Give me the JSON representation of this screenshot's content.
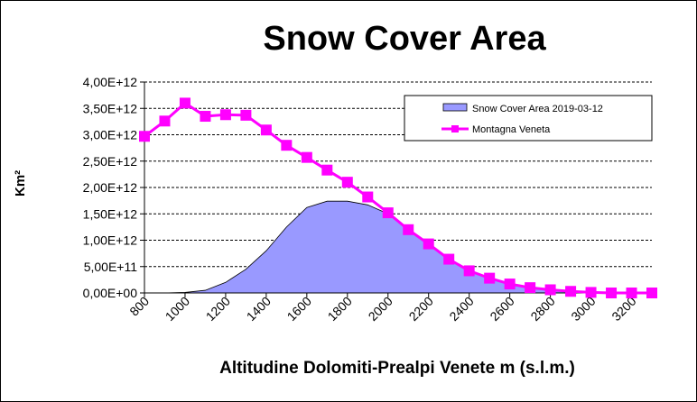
{
  "chart_data": {
    "type": "area+line",
    "title": "Snow Cover Area",
    "xlabel": "Altitudine Dolomiti-Prealpi Venete m (s.l.m.)",
    "ylabel": "Km²",
    "x": [
      800,
      900,
      1000,
      1100,
      1200,
      1300,
      1400,
      1500,
      1600,
      1700,
      1800,
      1900,
      2000,
      2100,
      2200,
      2300,
      2400,
      2500,
      2600,
      2700,
      2800,
      2900,
      3000,
      3100,
      3200,
      3300
    ],
    "xlim": [
      800,
      3300
    ],
    "x_tick_labels": [
      "800",
      "1000",
      "1200",
      "1400",
      "1600",
      "1800",
      "2000",
      "2200",
      "2400",
      "2600",
      "2800",
      "3000",
      "3200"
    ],
    "ylim": [
      0,
      4000000000000.0
    ],
    "y_tick_labels": [
      "0,00E+00",
      "5,00E+11",
      "1,00E+12",
      "1,50E+12",
      "2,00E+12",
      "2,50E+12",
      "3,00E+12",
      "3,50E+12",
      "4,00E+12"
    ],
    "grid": "horizontal dashed",
    "legend_position": "top-right",
    "series": [
      {
        "name": "Snow Cover Area 2019-03-12",
        "kind": "area",
        "color": "#9999ff",
        "values": [
          0,
          0,
          10000000000.0,
          50000000000.0,
          200000000000.0,
          450000000000.0,
          800000000000.0,
          1250000000000.0,
          1620000000000.0,
          1740000000000.0,
          1740000000000.0,
          1670000000000.0,
          1500000000000.0,
          1220000000000.0,
          930000000000.0,
          640000000000.0,
          420000000000.0,
          280000000000.0,
          170000000000.0,
          100000000000.0,
          60000000000.0,
          30000000000.0,
          10000000000.0,
          0,
          0,
          0
        ]
      },
      {
        "name": "Montagna Veneta",
        "kind": "line",
        "color": "#ff00ff",
        "values": [
          2970000000000.0,
          3260000000000.0,
          3600000000000.0,
          3350000000000.0,
          3380000000000.0,
          3370000000000.0,
          3090000000000.0,
          2800000000000.0,
          2570000000000.0,
          2330000000000.0,
          2100000000000.0,
          1820000000000.0,
          1520000000000.0,
          1200000000000.0,
          930000000000.0,
          640000000000.0,
          420000000000.0,
          280000000000.0,
          170000000000.0,
          100000000000.0,
          60000000000.0,
          30000000000.0,
          10000000000.0,
          0,
          0,
          0
        ]
      }
    ]
  }
}
